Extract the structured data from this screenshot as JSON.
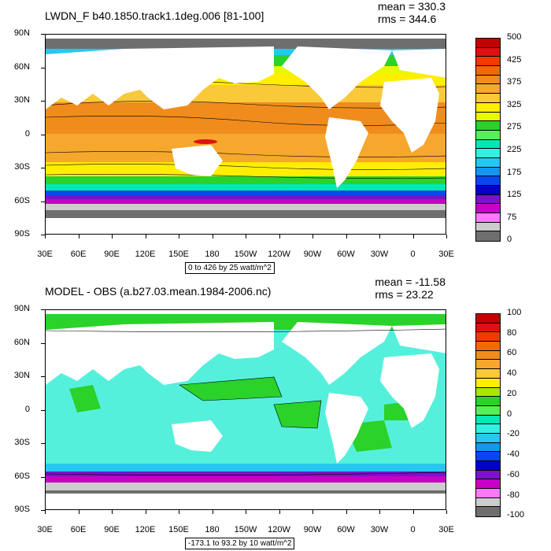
{
  "top": {
    "title": "LWDN_F b40.1850.track1.1deg.006 [81-100]",
    "mean": "mean = 330.3",
    "rms": "rms = 344.6",
    "range": "0 to 426 by 25 watt/m^2",
    "legend_colors": [
      "#c40000",
      "#e01010",
      "#f03a00",
      "#f06a00",
      "#f08c1c",
      "#f5a82d",
      "#f9c93a",
      "#ffee00",
      "#e8f800",
      "#2ad22a",
      "#55f055",
      "#00e8b4",
      "#34f0e0",
      "#24c8f0",
      "#1496f0",
      "#0a46f0",
      "#0000c8",
      "#7a14c8",
      "#c800c8",
      "#ff78ff",
      "#cccccc",
      "#6e6e6e"
    ],
    "legend_labels": [
      "500",
      "425",
      "375",
      "325",
      "275",
      "225",
      "175",
      "125",
      "75",
      "0"
    ]
  },
  "bottom": {
    "title": "MODEL - OBS (a.b27.03.mean.1984-2006.nc)",
    "mean": "mean = -11.58",
    "rms": "rms = 23.22",
    "range": "-173.1 to 93.2 by 10 watt/m^2",
    "legend_colors": [
      "#c40000",
      "#e01010",
      "#f03a00",
      "#f06a00",
      "#f08c1c",
      "#f5a82d",
      "#f9c93a",
      "#ffee00",
      "#a8e800",
      "#2ad22a",
      "#55f055",
      "#00e8b4",
      "#34f0e0",
      "#24c8f0",
      "#1496f0",
      "#0a46f0",
      "#0000c8",
      "#7a14c8",
      "#c800c8",
      "#ff78ff",
      "#cccccc",
      "#6e6e6e"
    ],
    "legend_labels": [
      "100",
      "80",
      "60",
      "40",
      "20",
      "0",
      "-20",
      "-40",
      "-60",
      "-80",
      "-100"
    ]
  },
  "lat_labels": [
    "90N",
    "60N",
    "30N",
    "0",
    "30S",
    "60S",
    "90S"
  ],
  "lon_labels": [
    "30E",
    "60E",
    "90E",
    "120E",
    "150E",
    "180",
    "150W",
    "120W",
    "90W",
    "60W",
    "30W",
    "0",
    "30E"
  ]
}
